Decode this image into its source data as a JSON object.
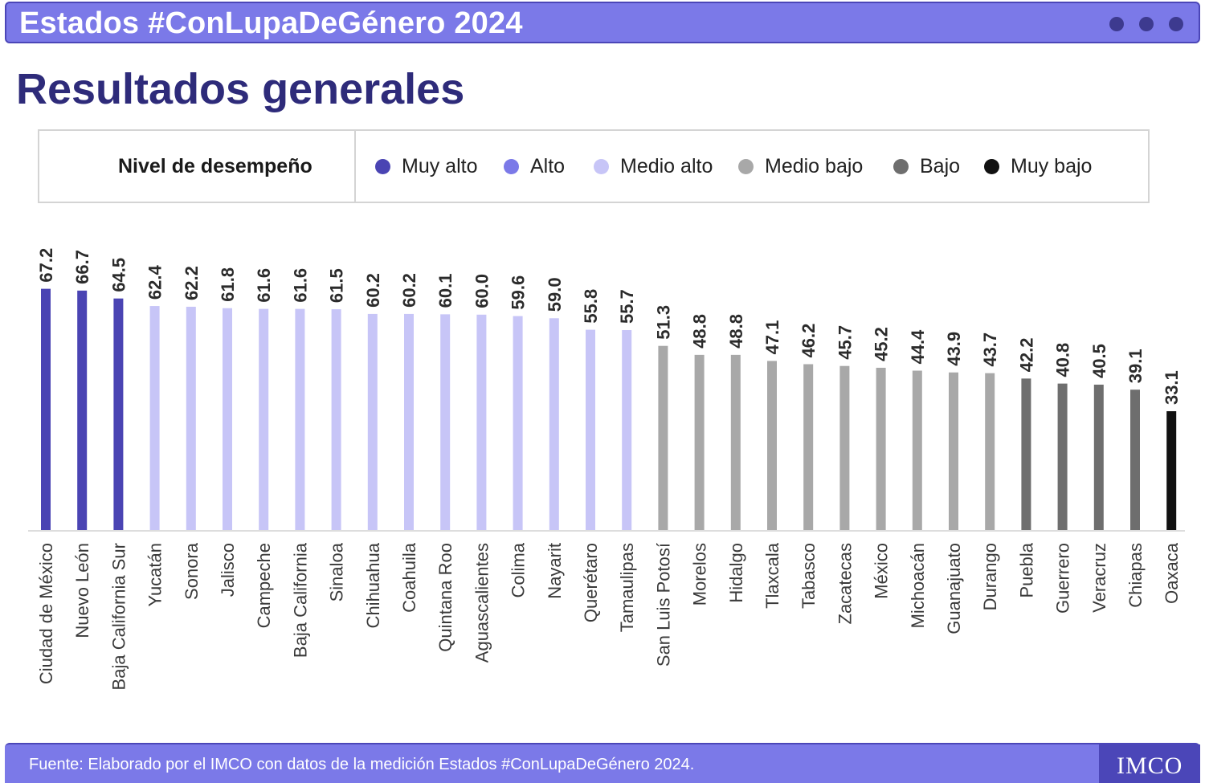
{
  "header": {
    "banner_title": "Estados #ConLupaDeGénero 2024",
    "page_title": "Resultados generales"
  },
  "legend": {
    "title": "Nivel de desempeño",
    "items": [
      {
        "label": "Muy alto",
        "color": "#4a44b3"
      },
      {
        "label": "Alto",
        "color": "#7b79e8"
      },
      {
        "label": "Medio alto",
        "color": "#c7c5f7"
      },
      {
        "label": "Medio bajo",
        "color": "#a8a8a8"
      },
      {
        "label": "Bajo",
        "color": "#6e6e6e"
      },
      {
        "label": "Muy bajo",
        "color": "#111111"
      }
    ]
  },
  "chart_data": {
    "type": "bar",
    "orientation": "vertical",
    "categories": [
      "Ciudad de México",
      "Nuevo León",
      "Baja California Sur",
      "Yucatán",
      "Sonora",
      "Jalisco",
      "Campeche",
      "Baja California",
      "Sinaloa",
      "Chihuahua",
      "Coahuila",
      "Quintana Roo",
      "Aguascalientes",
      "Colima",
      "Nayarit",
      "Querétaro",
      "Tamaulipas",
      "San Luis Potosí",
      "Morelos",
      "Hidalgo",
      "Tlaxcala",
      "Tabasco",
      "Zacatecas",
      "México",
      "Michoacán",
      "Guanajuato",
      "Durango",
      "Puebla",
      "Guerrero",
      "Veracruz",
      "Chiapas",
      "Oaxaca"
    ],
    "values": [
      "67.2",
      "66.7",
      "64.5",
      "62.4",
      "62.2",
      "61.8",
      "61.6",
      "61.6",
      "61.5",
      "60.2",
      "60.2",
      "60.1",
      "60.0",
      "59.6",
      "59.0",
      "55.8",
      "55.7",
      "51.3",
      "48.8",
      "48.8",
      "47.1",
      "46.2",
      "45.7",
      "45.2",
      "44.4",
      "43.9",
      "43.7",
      "42.2",
      "40.8",
      "40.5",
      "39.1",
      "33.1"
    ],
    "levels": [
      "Muy alto",
      "Muy alto",
      "Muy alto",
      "Medio alto",
      "Medio alto",
      "Medio alto",
      "Medio alto",
      "Medio alto",
      "Medio alto",
      "Medio alto",
      "Medio alto",
      "Medio alto",
      "Medio alto",
      "Medio alto",
      "Medio alto",
      "Medio alto",
      "Medio alto",
      "Medio bajo",
      "Medio bajo",
      "Medio bajo",
      "Medio bajo",
      "Medio bajo",
      "Medio bajo",
      "Medio bajo",
      "Medio bajo",
      "Medio bajo",
      "Medio bajo",
      "Bajo",
      "Bajo",
      "Bajo",
      "Bajo",
      "Muy bajo"
    ],
    "data_labels": "vertical above bars",
    "category_labels": "rotated vertical",
    "grid": false,
    "y_axis_visible": false
  },
  "footer": {
    "source": "Fuente: Elaborado por el IMCO con datos de la medición Estados #ConLupaDeGénero 2024.",
    "logo": "IMCO"
  }
}
